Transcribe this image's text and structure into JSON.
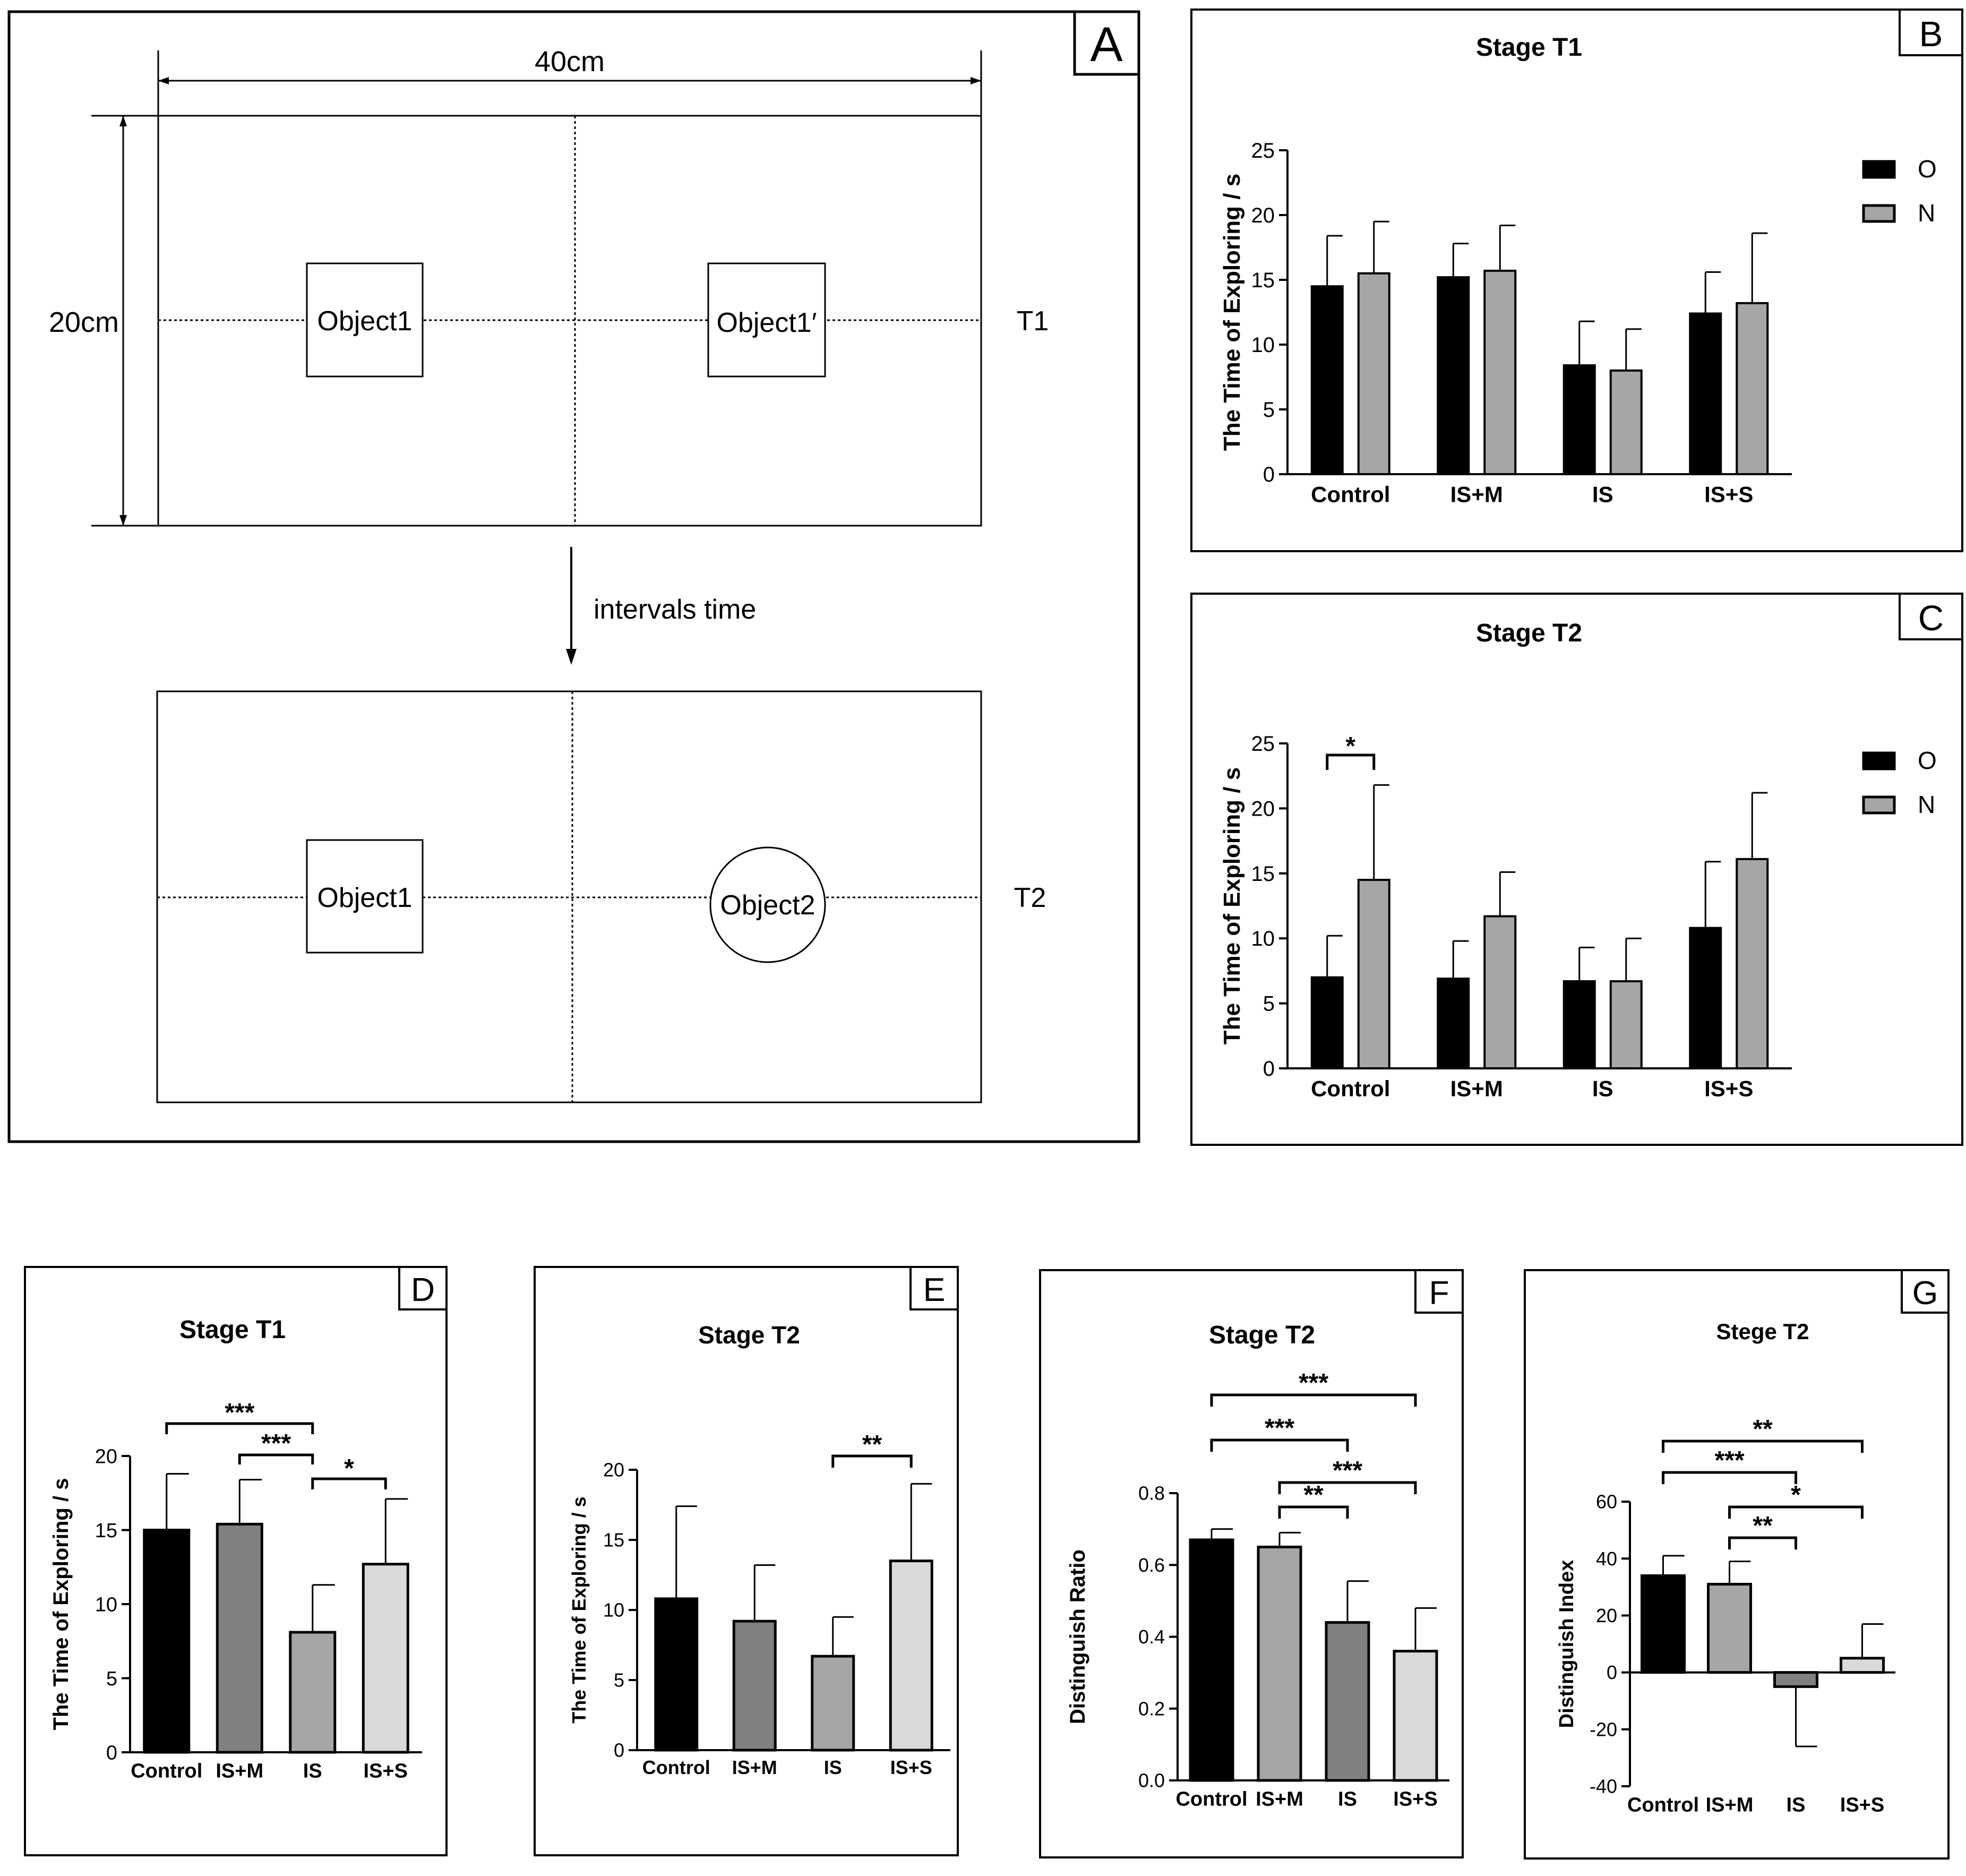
{
  "colors": {
    "black": "#000000",
    "gray": "#a6a6a6",
    "dark_gray": "#808080",
    "mid_gray": "#a6a6a6",
    "light_gray": "#d9d9d9"
  },
  "panel_a": {
    "letter": "A",
    "width_label": "40cm",
    "height_label": "20cm",
    "top_object_left": "Object1",
    "top_object_right": "Object1′",
    "top_stage": "T1",
    "interval_label": "intervals time",
    "bottom_object_left": "Object1",
    "bottom_object_right": "Object2",
    "bottom_stage": "T2"
  },
  "chart_data": [
    {
      "id": "B",
      "type": "bar",
      "title": "Stage T1",
      "ylabel": "The Time of Exploring / s",
      "xlabel": "",
      "ylim": [
        0,
        25
      ],
      "yticks": [
        0,
        5,
        10,
        15,
        20,
        25
      ],
      "categories": [
        "Control",
        "IS+M",
        "IS",
        "IS+S"
      ],
      "legend": {
        "position": "right",
        "entries": [
          "O",
          "N"
        ]
      },
      "series": [
        {
          "name": "O",
          "color": "#000000",
          "values": [
            14.5,
            15.2,
            8.4,
            12.4
          ],
          "errors": [
            3.9,
            2.6,
            3.4,
            3.2
          ]
        },
        {
          "name": "N",
          "color": "#a6a6a6",
          "values": [
            15.5,
            15.7,
            8.0,
            13.2
          ],
          "errors": [
            4.0,
            3.5,
            3.2,
            5.4
          ]
        }
      ],
      "significance": []
    },
    {
      "id": "C",
      "type": "bar",
      "title": "Stage T2",
      "ylabel": "The Time of Exploring / s",
      "xlabel": "",
      "ylim": [
        0,
        25
      ],
      "yticks": [
        0,
        5,
        10,
        15,
        20,
        25
      ],
      "categories": [
        "Control",
        "IS+M",
        "IS",
        "IS+S"
      ],
      "legend": {
        "position": "right",
        "entries": [
          "O",
          "N"
        ]
      },
      "series": [
        {
          "name": "O",
          "color": "#000000",
          "values": [
            7.0,
            6.9,
            6.7,
            10.8
          ],
          "errors": [
            3.2,
            2.9,
            2.6,
            5.1
          ]
        },
        {
          "name": "N",
          "color": "#a6a6a6",
          "values": [
            14.5,
            11.7,
            6.7,
            16.1
          ],
          "errors": [
            7.3,
            3.4,
            3.3,
            5.1
          ]
        }
      ],
      "significance": [
        {
          "from": "O:Control",
          "to": "N:Control",
          "label": "*"
        }
      ]
    },
    {
      "id": "D",
      "type": "bar",
      "title": "Stage T1",
      "ylabel": "The Time of Exploring / s",
      "xlabel": "",
      "ylim": [
        0,
        20
      ],
      "yticks": [
        0,
        5,
        10,
        15,
        20
      ],
      "categories": [
        "Control",
        "IS+M",
        "IS",
        "IS+S"
      ],
      "values": [
        15.0,
        15.4,
        8.1,
        12.7
      ],
      "errors": [
        3.8,
        3.0,
        3.2,
        4.4
      ],
      "bar_colors": [
        "#000000",
        "#808080",
        "#a6a6a6",
        "#d9d9d9"
      ],
      "significance": [
        {
          "from": "Control",
          "to": "IS",
          "label": "***"
        },
        {
          "from": "IS+M",
          "to": "IS",
          "label": "***"
        },
        {
          "from": "IS",
          "to": "IS+S",
          "label": "*"
        }
      ]
    },
    {
      "id": "E",
      "type": "bar",
      "title": "Stage T2",
      "ylabel": "The Time of Exploring / s",
      "xlabel": "",
      "ylim": [
        0,
        20
      ],
      "yticks": [
        0,
        5,
        10,
        15,
        20
      ],
      "categories": [
        "Control",
        "IS+M",
        "IS",
        "IS+S"
      ],
      "values": [
        10.8,
        9.2,
        6.7,
        13.5
      ],
      "errors": [
        6.6,
        4.0,
        2.8,
        5.5
      ],
      "bar_colors": [
        "#000000",
        "#808080",
        "#a6a6a6",
        "#d9d9d9"
      ],
      "significance": [
        {
          "from": "IS",
          "to": "IS+S",
          "label": "**"
        }
      ]
    },
    {
      "id": "F",
      "type": "bar",
      "title": "Stage T2",
      "ylabel": "Distinguish Ratio",
      "xlabel": "",
      "ylim": [
        0,
        0.8
      ],
      "yticks": [
        "0.0",
        "0.2",
        "0.4",
        "0.6",
        "0.8"
      ],
      "categories": [
        "Control",
        "IS+M",
        "IS",
        "IS+S"
      ],
      "values": [
        0.67,
        0.65,
        0.44,
        0.36
      ],
      "errors": [
        0.03,
        0.04,
        0.115,
        0.12
      ],
      "bar_colors": [
        "#000000",
        "#a6a6a6",
        "#808080",
        "#d9d9d9"
      ],
      "significance": [
        {
          "from": "Control",
          "to": "IS+S",
          "label": "***"
        },
        {
          "from": "Control",
          "to": "IS",
          "label": "***"
        },
        {
          "from": "IS+M",
          "to": "IS+S",
          "label": "***"
        },
        {
          "from": "IS+M",
          "to": "IS",
          "label": "**"
        }
      ]
    },
    {
      "id": "G",
      "type": "bar",
      "title": "Stege T2",
      "ylabel": "Distinguish Index",
      "xlabel": "",
      "ylim": [
        -40,
        60
      ],
      "yticks": [
        -40,
        -20,
        0,
        20,
        40,
        60
      ],
      "categories": [
        "Control",
        "IS+M",
        "IS",
        "IS+S"
      ],
      "values": [
        34,
        31,
        -5,
        5
      ],
      "errors": [
        7,
        8,
        21,
        12
      ],
      "bar_colors": [
        "#000000",
        "#a6a6a6",
        "#808080",
        "#d9d9d9"
      ],
      "significance": [
        {
          "from": "Control",
          "to": "IS+S",
          "label": "**"
        },
        {
          "from": "Control",
          "to": "IS",
          "label": "***"
        },
        {
          "from": "IS+M",
          "to": "IS+S",
          "label": "*"
        },
        {
          "from": "IS+M",
          "to": "IS",
          "label": "**"
        }
      ]
    }
  ]
}
